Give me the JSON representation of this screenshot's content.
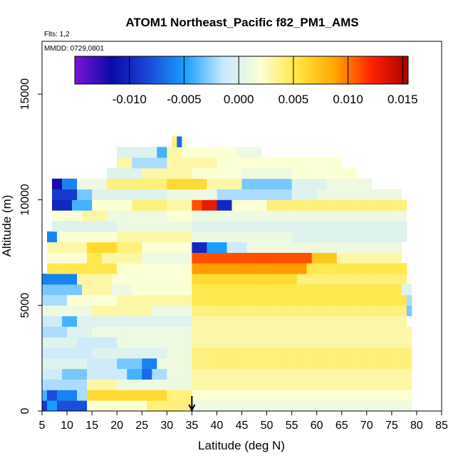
{
  "chart_data": {
    "type": "heatmap",
    "title": "ATOM1 Northeast_Pacific f82_PM1_AMS",
    "flights_note": "Flts: 1,2",
    "date_note": "MMDD: 0729,0801",
    "xlabel": "Latitude (deg N)",
    "ylabel": "Altitude (m)",
    "xlim": [
      5,
      85
    ],
    "ylim": [
      0,
      17500
    ],
    "x_ticks": [
      5,
      10,
      15,
      20,
      25,
      30,
      35,
      40,
      45,
      50,
      55,
      60,
      65,
      70,
      75,
      80,
      85
    ],
    "y_ticks": [
      0,
      5000,
      10000,
      15000
    ],
    "colorbar": {
      "range": [
        -0.015,
        0.0155
      ],
      "ticks": [
        -0.01,
        -0.005,
        0.0,
        0.005,
        0.01,
        0.015
      ],
      "tick_labels": [
        "-0.010",
        "-0.005",
        "0.000",
        "0.005",
        "0.010",
        "0.015"
      ],
      "colors": [
        "#7a14d6",
        "#0a0aa8",
        "#1a48d8",
        "#1aa0ff",
        "#c8e8ff",
        "#fbffd6",
        "#ffe640",
        "#ffa800",
        "#ff2400",
        "#a80000"
      ]
    },
    "marker": {
      "x": 35,
      "note": "arrow at latitude 35"
    },
    "bin_size": {
      "lat": 1,
      "alt": 500
    },
    "grid": [
      {
        "alt": 250,
        "segments": [
          [
            5,
            6,
            -0.009
          ],
          [
            6,
            8,
            -0.005
          ],
          [
            8,
            14,
            -0.008
          ],
          [
            14,
            26,
            0.002
          ],
          [
            26,
            35,
            0.004
          ],
          [
            35,
            79,
            0.001
          ]
        ]
      },
      {
        "alt": 750,
        "segments": [
          [
            5,
            6,
            -0.004
          ],
          [
            6,
            8,
            -0.008
          ],
          [
            8,
            12,
            -0.006
          ],
          [
            12,
            14,
            -0.002
          ],
          [
            14,
            30,
            0.006
          ],
          [
            30,
            35,
            0.004
          ],
          [
            35,
            79,
            0.002
          ]
        ]
      },
      {
        "alt": 1250,
        "segments": [
          [
            5,
            14,
            -0.002
          ],
          [
            14,
            20,
            0.003
          ],
          [
            20,
            35,
            0.001
          ],
          [
            35,
            79,
            0.003
          ]
        ]
      },
      {
        "alt": 1750,
        "segments": [
          [
            5,
            9,
            -0.001
          ],
          [
            9,
            14,
            -0.003
          ],
          [
            14,
            22,
            -0.001
          ],
          [
            22,
            25,
            -0.004
          ],
          [
            25,
            27,
            -0.007
          ],
          [
            27,
            30,
            -0.002
          ],
          [
            30,
            35,
            0.001
          ],
          [
            35,
            79,
            0.003
          ]
        ]
      },
      {
        "alt": 2250,
        "segments": [
          [
            5,
            14,
            0.0
          ],
          [
            14,
            20,
            -0.001
          ],
          [
            20,
            25,
            -0.003
          ],
          [
            25,
            28,
            -0.006
          ],
          [
            28,
            35,
            0.001
          ],
          [
            35,
            79,
            0.004
          ]
        ]
      },
      {
        "alt": 2750,
        "segments": [
          [
            5,
            15,
            -0.001
          ],
          [
            15,
            30,
            0.0
          ],
          [
            30,
            35,
            0.001
          ],
          [
            35,
            79,
            0.004
          ]
        ]
      },
      {
        "alt": 3250,
        "segments": [
          [
            5,
            12,
            0.0
          ],
          [
            12,
            20,
            -0.001
          ],
          [
            20,
            35,
            0.001
          ],
          [
            35,
            79,
            0.003
          ]
        ]
      },
      {
        "alt": 3750,
        "segments": [
          [
            5,
            10,
            -0.002
          ],
          [
            10,
            15,
            0.0
          ],
          [
            15,
            35,
            0.001
          ],
          [
            35,
            79,
            0.003
          ]
        ]
      },
      {
        "alt": 4250,
        "segments": [
          [
            5,
            9,
            -0.001
          ],
          [
            9,
            12,
            -0.004
          ],
          [
            12,
            35,
            0.0
          ],
          [
            35,
            78,
            0.003
          ]
        ]
      },
      {
        "alt": 4750,
        "segments": [
          [
            5,
            15,
            0.001
          ],
          [
            15,
            27,
            0.003
          ],
          [
            27,
            35,
            0.001
          ],
          [
            35,
            78,
            0.004
          ],
          [
            78,
            79,
            -0.003
          ]
        ]
      },
      {
        "alt": 5250,
        "segments": [
          [
            5,
            10,
            -0.002
          ],
          [
            10,
            20,
            0.002
          ],
          [
            20,
            35,
            0.003
          ],
          [
            35,
            78,
            0.005
          ],
          [
            78,
            79,
            -0.002
          ]
        ]
      },
      {
        "alt": 5750,
        "segments": [
          [
            5,
            13,
            -0.003
          ],
          [
            13,
            19,
            0.003
          ],
          [
            19,
            23,
            0.001
          ],
          [
            23,
            35,
            0.002
          ],
          [
            35,
            77,
            0.005
          ],
          [
            77,
            79,
            0.0
          ]
        ]
      },
      {
        "alt": 6250,
        "segments": [
          [
            5,
            12,
            -0.006
          ],
          [
            12,
            19,
            0.003
          ],
          [
            19,
            35,
            0.002
          ],
          [
            35,
            56,
            0.006
          ],
          [
            56,
            78,
            0.004
          ]
        ]
      },
      {
        "alt": 6750,
        "segments": [
          [
            6,
            20,
            0.005
          ],
          [
            20,
            35,
            0.002
          ],
          [
            35,
            58,
            0.009
          ],
          [
            58,
            78,
            0.005
          ]
        ]
      },
      {
        "alt": 7250,
        "segments": [
          [
            6,
            14,
            0.002
          ],
          [
            14,
            17,
            0.005
          ],
          [
            17,
            25,
            0.003
          ],
          [
            25,
            35,
            0.001
          ],
          [
            35,
            59,
            0.011
          ],
          [
            59,
            64,
            0.007
          ],
          [
            64,
            77,
            0.003
          ]
        ]
      },
      {
        "alt": 7750,
        "segments": [
          [
            6,
            14,
            0.003
          ],
          [
            14,
            20,
            0.006
          ],
          [
            20,
            25,
            0.004
          ],
          [
            25,
            35,
            0.002
          ],
          [
            35,
            38,
            -0.01
          ],
          [
            38,
            42,
            -0.005
          ],
          [
            42,
            46,
            -0.001
          ],
          [
            46,
            77,
            0.001
          ]
        ]
      },
      {
        "alt": 8250,
        "segments": [
          [
            6,
            8,
            -0.006
          ],
          [
            8,
            20,
            0.002
          ],
          [
            20,
            35,
            0.003
          ],
          [
            35,
            55,
            0.001
          ],
          [
            55,
            78,
            0.0
          ]
        ]
      },
      {
        "alt": 8750,
        "segments": [
          [
            7,
            20,
            0.0
          ],
          [
            20,
            35,
            0.001
          ],
          [
            35,
            78,
            0.0
          ]
        ]
      },
      {
        "alt": 9250,
        "segments": [
          [
            7,
            13,
            0.002
          ],
          [
            13,
            18,
            0.003
          ],
          [
            18,
            30,
            0.001
          ],
          [
            30,
            35,
            0.002
          ],
          [
            35,
            78,
            0.001
          ]
        ]
      },
      {
        "alt": 9750,
        "segments": [
          [
            7,
            11,
            -0.01
          ],
          [
            11,
            15,
            -0.004
          ],
          [
            15,
            23,
            0.002
          ],
          [
            23,
            30,
            0.004
          ],
          [
            30,
            35,
            0.003
          ],
          [
            35,
            37,
            0.011
          ],
          [
            37,
            40,
            0.013
          ],
          [
            40,
            43,
            -0.01
          ],
          [
            43,
            50,
            0.002
          ],
          [
            50,
            78,
            0.004
          ]
        ]
      },
      {
        "alt": 10250,
        "segments": [
          [
            7,
            12,
            -0.009
          ],
          [
            12,
            15,
            -0.003
          ],
          [
            15,
            30,
            0.0
          ],
          [
            30,
            40,
            0.001
          ],
          [
            40,
            55,
            -0.002
          ],
          [
            55,
            60,
            0.0
          ],
          [
            60,
            77,
            0.001
          ]
        ]
      },
      {
        "alt": 10750,
        "segments": [
          [
            7,
            9,
            -0.012
          ],
          [
            9,
            12,
            -0.006
          ],
          [
            12,
            18,
            0.001
          ],
          [
            18,
            30,
            0.004
          ],
          [
            30,
            38,
            0.006
          ],
          [
            38,
            45,
            0.003
          ],
          [
            45,
            55,
            -0.003
          ],
          [
            55,
            62,
            0.0
          ],
          [
            62,
            71,
            0.001
          ]
        ]
      },
      {
        "alt": 11250,
        "segments": [
          [
            18,
            25,
            0.0
          ],
          [
            25,
            35,
            0.003
          ],
          [
            35,
            45,
            0.002
          ],
          [
            45,
            55,
            0.001
          ],
          [
            55,
            68,
            0.002
          ]
        ]
      },
      {
        "alt": 11750,
        "segments": [
          [
            20,
            23,
            0.003
          ],
          [
            23,
            30,
            -0.002
          ],
          [
            30,
            40,
            0.003
          ],
          [
            40,
            50,
            0.002
          ],
          [
            50,
            65,
            0.002
          ]
        ]
      },
      {
        "alt": 12250,
        "segments": [
          [
            20,
            28,
            0.0
          ],
          [
            28,
            30,
            -0.004
          ],
          [
            30,
            33,
            0.003
          ],
          [
            33,
            44,
            0.002
          ],
          [
            44,
            49,
            0.001
          ]
        ]
      },
      {
        "alt": 12750,
        "segments": [
          [
            31,
            32,
            0.004
          ],
          [
            32,
            33,
            -0.007
          ],
          [
            33,
            34,
            0.002
          ]
        ]
      }
    ]
  }
}
